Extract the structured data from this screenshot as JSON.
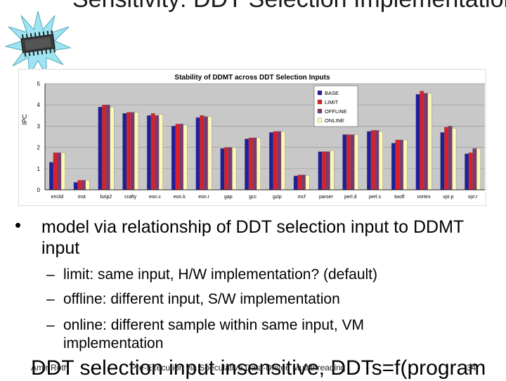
{
  "slide": {
    "title": "Sensitivity: DDT Selection Implementation",
    "bullet": "model via relationship of DDT selection input to DDMT input",
    "subbullets": [
      {
        "dash": "–",
        "text": "limit: same input, H/W implementation? (default)"
      },
      {
        "dash": "–",
        "text": "offline: different input, S/W implementation"
      },
      {
        "dash": "–",
        "text": "online: different sample within same input, VM implementation"
      }
    ],
    "overflow_text": "DDT selection input insensitive, DDTs=f(program",
    "footer": {
      "author": "Amir Roth",
      "talk": "Pre-Execution via Speculative Data-Driven Multithreading",
      "page": "34"
    }
  },
  "icons": {
    "chip": "microchip-starburst-icon",
    "bullet": "bullet-dot-icon"
  },
  "colors": {
    "BASE": "#1f1f9a",
    "LIMIT": "#d81f2a",
    "OFFLINE": "#7a3a6e",
    "ONLINE": "#fbf7b8",
    "plot_bg": "#c8c8c8"
  },
  "chart_data": {
    "type": "bar",
    "title": "Stability of DDMT across DDT Selection Inputs",
    "ylabel": "IPC",
    "xlabel": "",
    "ylim": [
      0,
      5
    ],
    "yticks": [
      "0",
      "1",
      "2",
      "3",
      "4",
      "5"
    ],
    "grid": true,
    "legend_position": "top-right",
    "categories": [
      "em3d",
      "mst",
      "bzip2",
      "crafty",
      "eon.c",
      "eon.k",
      "eon.r",
      "gap",
      "gcc",
      "gzip",
      "mcf",
      "parser",
      "perl.d",
      "perl.s",
      "twolf",
      "vortex",
      "vpr.p",
      "vpr.r"
    ],
    "series": [
      {
        "name": "BASE",
        "values": [
          1.3,
          0.35,
          3.9,
          3.6,
          3.5,
          3.0,
          3.4,
          1.95,
          2.4,
          2.7,
          0.65,
          1.8,
          2.6,
          2.75,
          2.2,
          4.5,
          2.7,
          1.7
        ]
      },
      {
        "name": "LIMIT",
        "values": [
          1.75,
          0.45,
          4.0,
          3.65,
          3.6,
          3.1,
          3.5,
          2.0,
          2.45,
          2.75,
          0.7,
          1.8,
          2.6,
          2.8,
          2.35,
          4.65,
          2.95,
          1.75
        ]
      },
      {
        "name": "OFFLINE",
        "values": [
          1.75,
          0.45,
          4.0,
          3.65,
          3.5,
          3.1,
          3.45,
          2.0,
          2.45,
          2.75,
          0.7,
          1.8,
          2.6,
          2.8,
          2.35,
          4.55,
          3.0,
          1.95
        ]
      },
      {
        "name": "ONLINE",
        "values": [
          1.75,
          0.45,
          3.9,
          3.65,
          3.55,
          3.05,
          3.45,
          2.0,
          2.45,
          2.75,
          0.68,
          1.85,
          2.6,
          2.75,
          2.35,
          4.55,
          2.9,
          1.95
        ]
      }
    ]
  }
}
